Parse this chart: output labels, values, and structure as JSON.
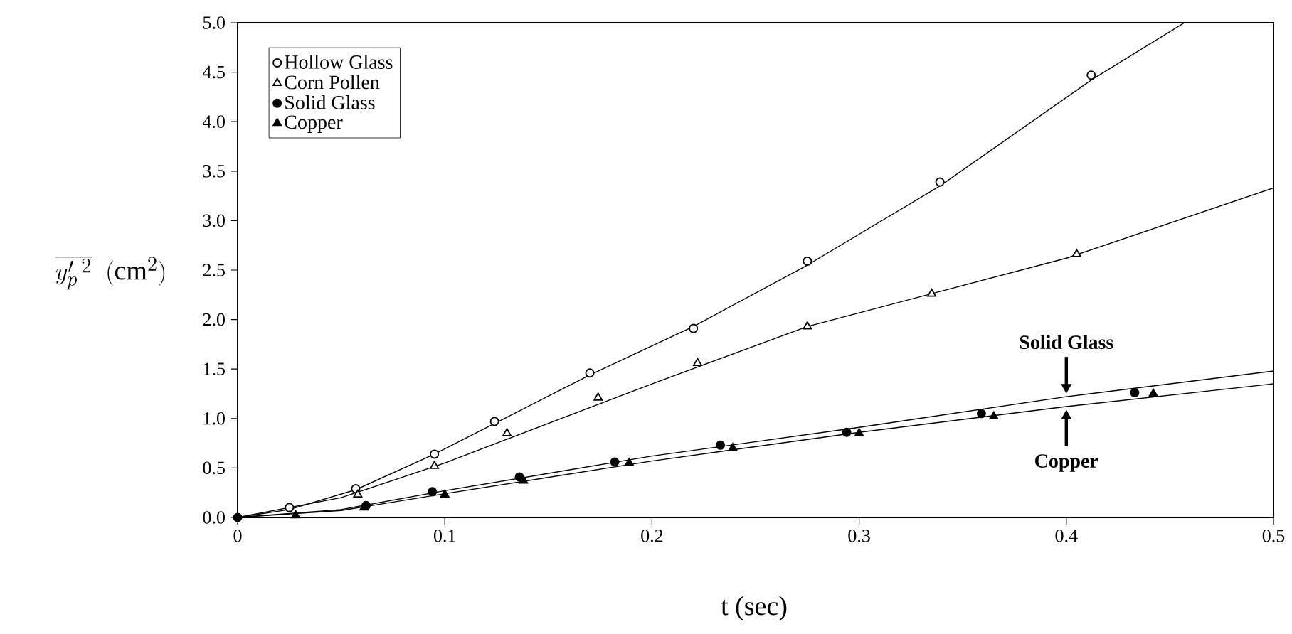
{
  "chart_data": {
    "type": "scatter",
    "xlabel": "t (sec)",
    "ylabel": "\\overline{y'_{p}{}^{\\,2}}\\ \\ (\\mathrm{cm}^{2})",
    "xlim": [
      0,
      0.5
    ],
    "ylim": [
      0,
      5
    ],
    "xticks": [
      0,
      0.1,
      0.2,
      0.3,
      0.4,
      0.5
    ],
    "yticks": [
      {
        "value": 0,
        "label": "0.0"
      },
      0.5,
      {
        "value": 1,
        "label": "1.0"
      },
      1.5,
      {
        "value": 2,
        "label": "2.0"
      },
      2.5,
      {
        "value": 3,
        "label": "3.0"
      },
      3.5,
      {
        "value": 4,
        "label": "4.0"
      },
      4.5,
      {
        "value": 5,
        "label": "5.0"
      }
    ],
    "grid": false,
    "legend": "top left",
    "series": [
      {
        "name": "Hollow Glass",
        "color": "#ffffff",
        "marker": "circle",
        "x": [
          0.025,
          0.057,
          0.095,
          0.124,
          0.17,
          0.22,
          0.275,
          0.339,
          0.412
        ],
        "values": [
          0.1,
          0.29,
          0.64,
          0.97,
          1.46,
          1.91,
          2.59,
          3.39,
          4.47
        ]
      },
      {
        "name": "Corn Pollen",
        "color": "#ffffff",
        "marker": "triangle",
        "x": [
          0.058,
          0.095,
          0.13,
          0.174,
          0.222,
          0.275,
          0.335,
          0.405
        ],
        "values": [
          0.23,
          0.52,
          0.85,
          1.21,
          1.56,
          1.93,
          2.26,
          2.66
        ]
      },
      {
        "name": "Solid Glass",
        "color": "#000000",
        "marker": "circle",
        "x": [
          0,
          0.027,
          0.062,
          0.094,
          0.136,
          0.182,
          0.233,
          0.294,
          0.359,
          0.433
        ],
        "values": [
          0,
          null,
          0.12,
          0.26,
          0.41,
          0.56,
          0.73,
          0.86,
          1.05,
          1.26
        ]
      },
      {
        "name": "Copper",
        "color": "#000000",
        "marker": "triangle",
        "x": [
          0.028,
          0.061,
          0.1,
          0.138,
          0.189,
          0.239,
          0.3,
          0.365,
          0.442
        ],
        "values": [
          0.02,
          0.1,
          0.23,
          0.37,
          0.55,
          0.7,
          0.85,
          1.02,
          1.25
        ]
      },
      {
        "type": "line",
        "color": "#000000",
        "marker": "none",
        "x": [
          0,
          0.025,
          0.057,
          0.095,
          0.17,
          0.22,
          0.275,
          0.339,
          0.412,
          0.457
        ],
        "values": [
          0,
          0.08,
          0.28,
          0.64,
          1.44,
          1.93,
          2.55,
          3.35,
          4.42,
          5.0
        ]
      },
      {
        "type": "line",
        "color": "#000000",
        "marker": "none",
        "x": [
          0,
          0.05,
          0.1,
          0.2,
          0.275,
          0.4,
          0.5
        ],
        "values": [
          0,
          0.2,
          0.55,
          1.35,
          1.93,
          2.62,
          3.33
        ]
      },
      {
        "type": "line",
        "color": "#000000",
        "marker": "none",
        "x": [
          0,
          0.05,
          0.1,
          0.2,
          0.3,
          0.4,
          0.5
        ],
        "values": [
          0,
          0.08,
          0.27,
          0.62,
          0.91,
          1.22,
          1.48
        ]
      },
      {
        "type": "line",
        "color": "#000000",
        "marker": "none",
        "x": [
          0,
          0.05,
          0.1,
          0.2,
          0.3,
          0.4,
          0.5
        ],
        "values": [
          0,
          0.07,
          0.24,
          0.57,
          0.86,
          1.12,
          1.35
        ]
      }
    ],
    "annotations": [
      {
        "text": "Solid Glass",
        "x": 0.4,
        "y": 1.22
      },
      {
        "text": "Copper",
        "x": 0.4,
        "y": 1.12
      }
    ]
  }
}
